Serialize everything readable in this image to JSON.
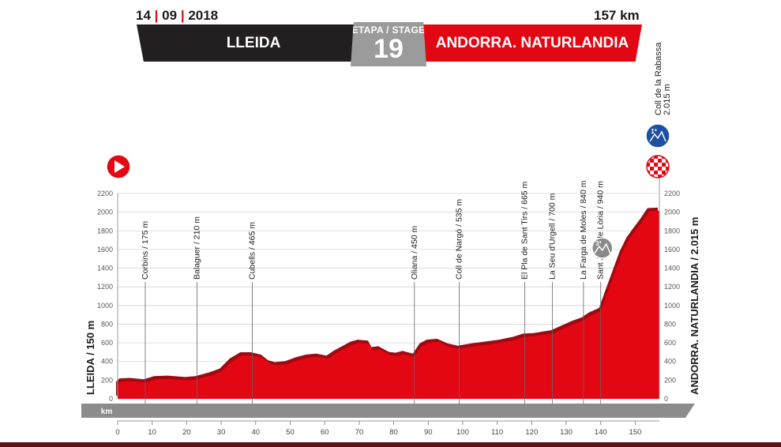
{
  "header": {
    "date_day": "14",
    "date_month": "09",
    "date_year": "2018",
    "distance": "157 km",
    "start": "LLEIDA",
    "finish": "ANDORRA. NATURLANDIA",
    "stage_label": "ETAPA / STAGE",
    "stage_number": "19"
  },
  "colors": {
    "profile": "#e30613",
    "banner_dark": "#231f20",
    "banner_red": "#e30613",
    "stage_gray": "#9b9b9b",
    "km_strip": "#8c8c8c",
    "climb_cat1": "#1f4fa0",
    "climb_cat3": "#8a8a8a"
  },
  "chart_data": {
    "type": "area",
    "title": "",
    "xlabel": "",
    "ylabel": "",
    "xlim": [
      0,
      157
    ],
    "ylim": [
      0,
      2200
    ],
    "x_ticks": [
      0,
      10,
      20,
      30,
      40,
      50,
      60,
      70,
      80,
      90,
      100,
      110,
      120,
      130,
      140,
      150
    ],
    "y_ticks": [
      0,
      200,
      400,
      600,
      800,
      1000,
      1200,
      1400,
      1600,
      1800,
      2000,
      2200
    ],
    "km_strip_label": "km",
    "start_label": "LLEIDA / 150 m",
    "finish_label": "ANDORRA. NATURLANDIA / 2.015 m",
    "profile": {
      "x": [
        0,
        1,
        4,
        8,
        11,
        15,
        20,
        23,
        27,
        30,
        33,
        36,
        39,
        42,
        44,
        46,
        49,
        52,
        55,
        58,
        61,
        63,
        65,
        68,
        70,
        73,
        74,
        76,
        79,
        81,
        83,
        86,
        88,
        90,
        93,
        96,
        99,
        103,
        107,
        111,
        115,
        118,
        121,
        124,
        126,
        129,
        132,
        135,
        137,
        140,
        142,
        144,
        146,
        148,
        150,
        152,
        154,
        157
      ],
      "y": [
        150,
        185,
        190,
        175,
        210,
        215,
        200,
        210,
        250,
        290,
        400,
        465,
        465,
        440,
        380,
        360,
        370,
        410,
        440,
        450,
        430,
        480,
        520,
        580,
        600,
        590,
        520,
        530,
        470,
        460,
        480,
        450,
        560,
        600,
        610,
        560,
        535,
        560,
        580,
        600,
        630,
        665,
        670,
        690,
        700,
        750,
        800,
        840,
        890,
        940,
        1150,
        1350,
        1550,
        1700,
        1800,
        1900,
        2010,
        2015
      ]
    },
    "towns": [
      {
        "name": "Corbins / 175 m",
        "km": 8,
        "km_label": "8"
      },
      {
        "name": "Balaguer / 210 m",
        "km": 23,
        "km_label": "23"
      },
      {
        "name": "Cubells / 465 m",
        "km": 39,
        "km_label": "39"
      },
      {
        "name": "Oliana / 450 m",
        "km": 86,
        "km_label": "86"
      },
      {
        "name": "Coll de Nargó / 535 m",
        "km": 99,
        "km_label": "99"
      },
      {
        "name": "El Pla de Sant Tirs / 665 m",
        "km": 118,
        "km_label": "118"
      },
      {
        "name": "La Seu d'Urgell / 700 m",
        "km": 126,
        "km_label": "126"
      },
      {
        "name": "La Farga de Moles / 840 m",
        "km": 135,
        "km_label": "135"
      },
      {
        "name": "Sant Julià de Lòria / 940 m",
        "km": 140,
        "km_label": "140"
      }
    ],
    "finish_km_label": "157",
    "summit": {
      "name": "Coll de la Rabassa",
      "altitude": "2.015 m",
      "km": 157
    },
    "climbs": [
      {
        "category": "1ª",
        "km": 157,
        "color": "#1f4fa0",
        "icon": "cat1-climb-icon"
      },
      {
        "category": "3ª",
        "km": 140,
        "color": "#8a8a8a",
        "icon": "cat3-climb-icon"
      }
    ]
  }
}
